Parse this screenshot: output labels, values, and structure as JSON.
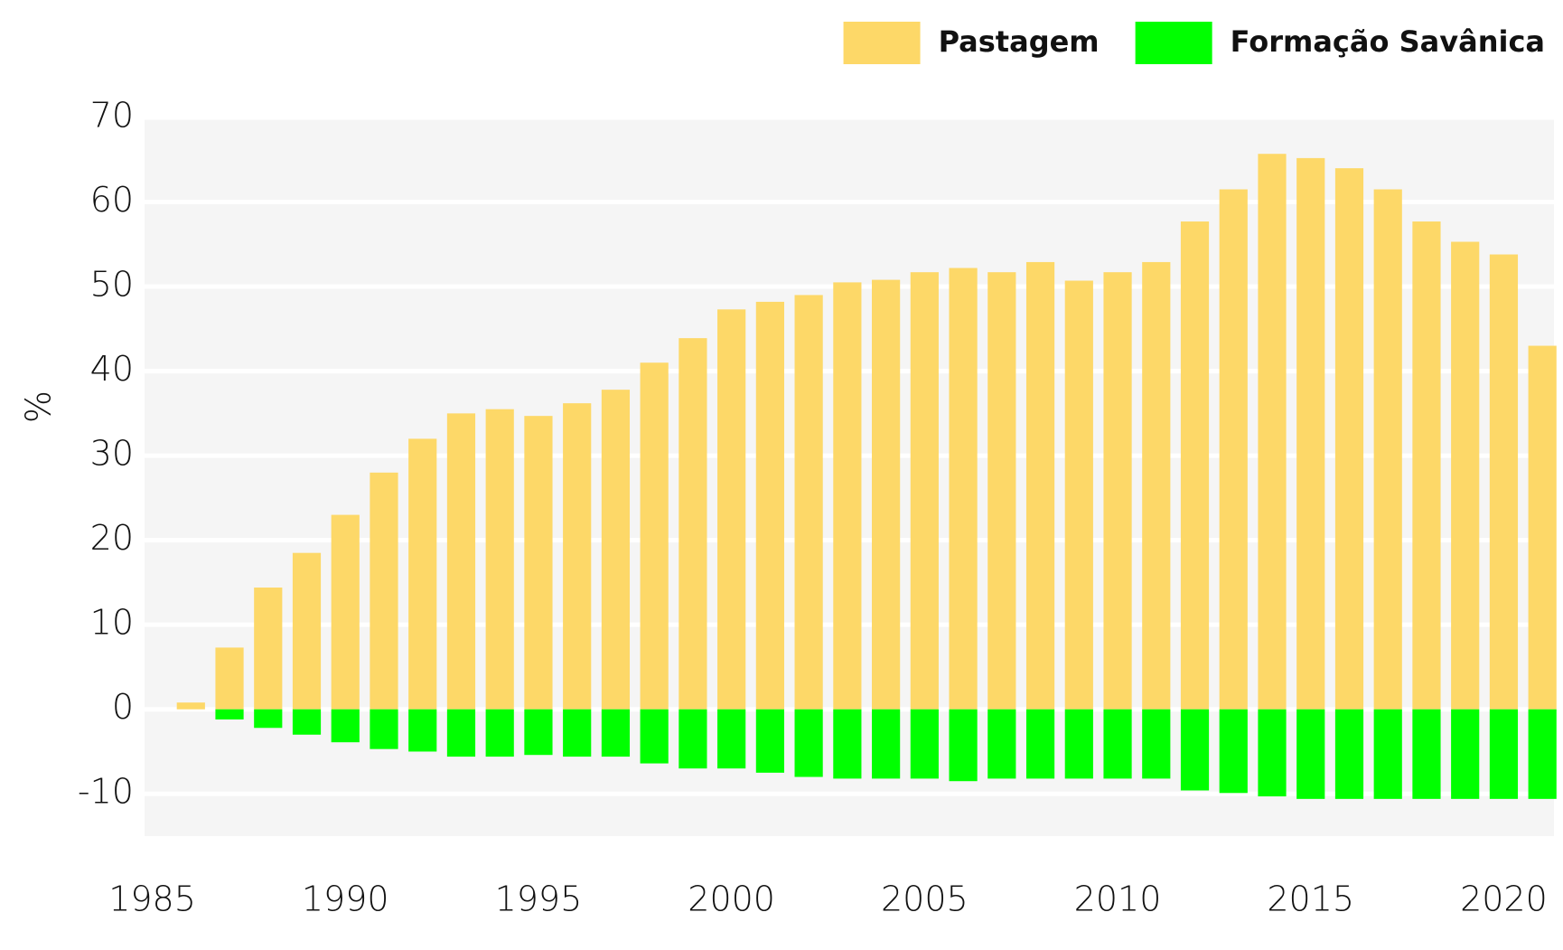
{
  "chart_data": {
    "type": "bar",
    "y_label": "%",
    "x": [
      1986,
      1987,
      1988,
      1989,
      1990,
      1991,
      1992,
      1993,
      1994,
      1995,
      1996,
      1997,
      1998,
      1999,
      2000,
      2001,
      2002,
      2003,
      2004,
      2005,
      2006,
      2007,
      2008,
      2009,
      2010,
      2011,
      2012,
      2013,
      2014,
      2015,
      2016,
      2017,
      2018,
      2019,
      2020,
      2021
    ],
    "series": [
      {
        "name": "Pastagem",
        "color": "#fdd868",
        "values": [
          0.8,
          7.3,
          14.4,
          18.5,
          23,
          28,
          32,
          35,
          35.5,
          34.7,
          36.2,
          37.8,
          41,
          43.9,
          47.3,
          48.2,
          49,
          50.5,
          50.8,
          51.7,
          52.2,
          51.7,
          52.9,
          50.7,
          51.7,
          52.9,
          57.7,
          61.5,
          65.7,
          65.2,
          64,
          61.5,
          57.7,
          55.3,
          53.8,
          43
        ]
      },
      {
        "name": "Formação Savânica",
        "color": "#00ff00",
        "values": [
          null,
          -1.2,
          -2.2,
          -3,
          -3.9,
          -4.7,
          -5,
          -5.6,
          -5.6,
          -5.4,
          -5.6,
          -5.6,
          -6.4,
          -7,
          -7,
          -7.5,
          -8,
          -8.2,
          -8.2,
          -8.2,
          -8.5,
          -8.2,
          -8.2,
          -8.2,
          -8.2,
          -8.2,
          -9.6,
          -9.9,
          -10.3,
          -10.6,
          -10.6,
          -10.6,
          -10.6,
          -10.6,
          -10.6,
          -10.6
        ]
      }
    ],
    "xlim": [
      1984.8,
      2021.3
    ],
    "xticks": [
      1985,
      1990,
      1995,
      2000,
      2005,
      2010,
      2015,
      2020
    ],
    "ylim": [
      -15,
      70
    ],
    "yticks": [
      -10,
      0,
      10,
      20,
      30,
      40,
      50,
      60,
      70
    ],
    "grid": true,
    "legend": "top-right"
  }
}
